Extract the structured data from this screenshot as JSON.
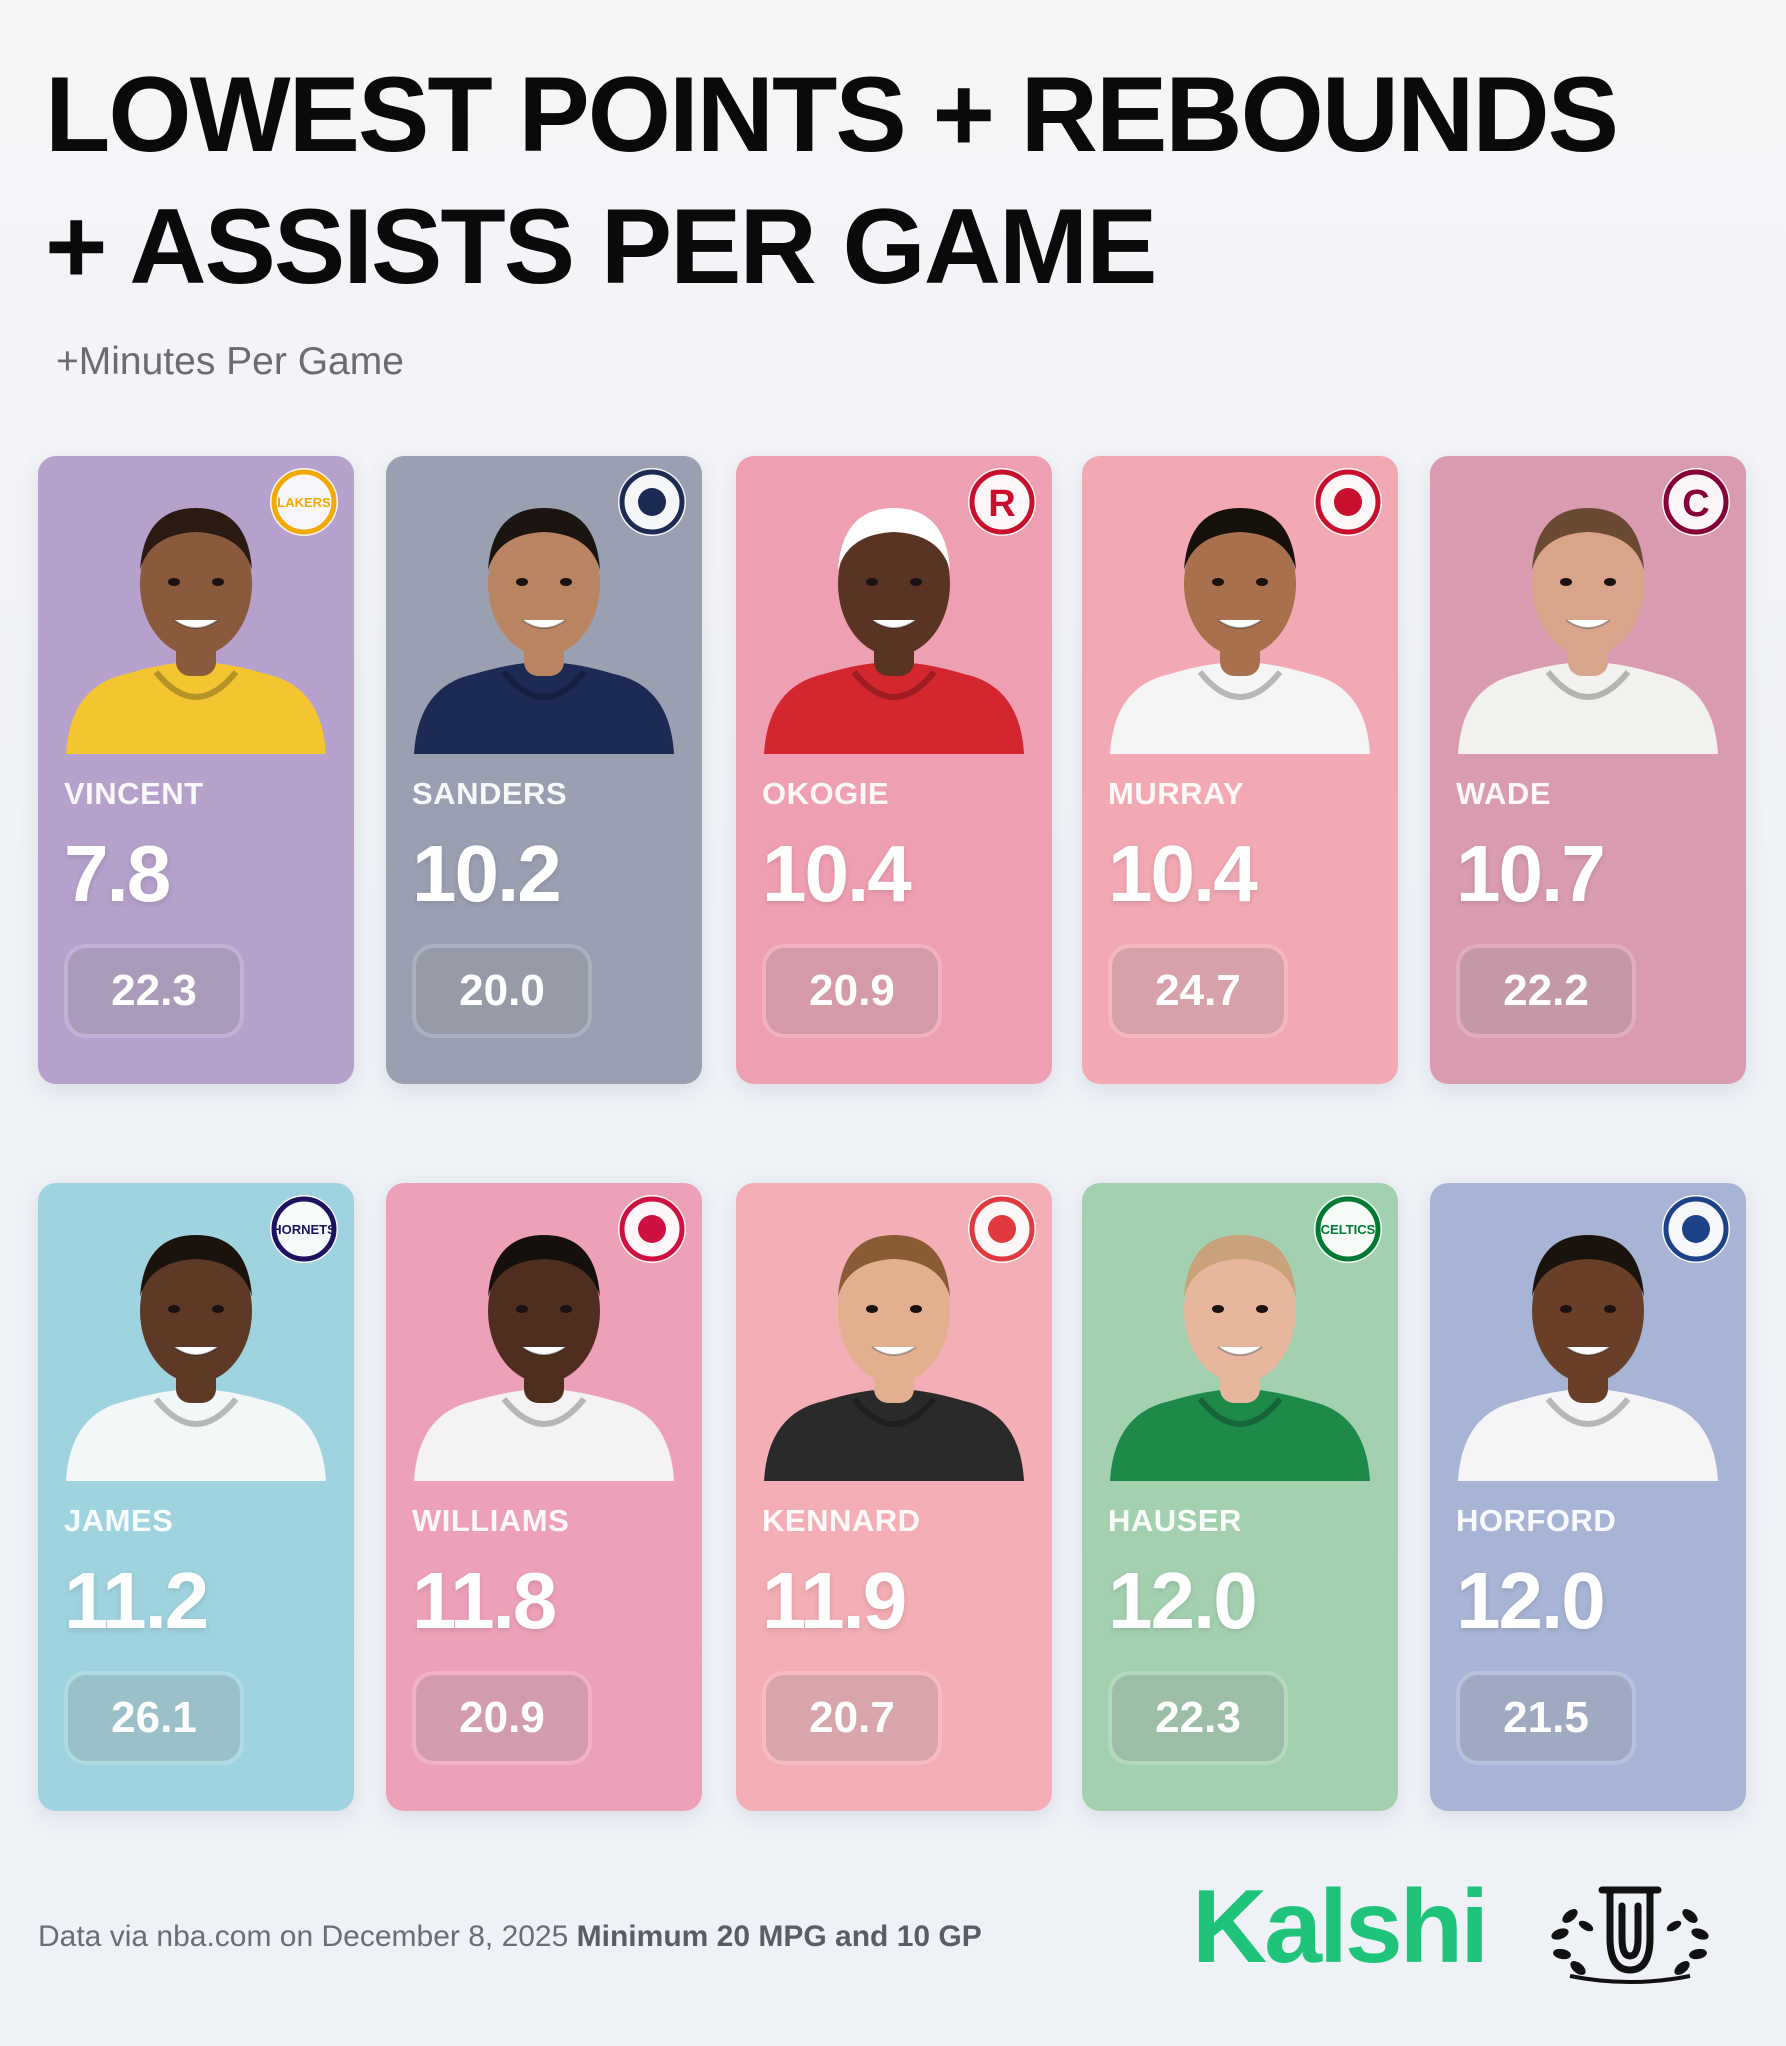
{
  "header": {
    "title_line1": "LOWEST POINTS + REBOUNDS",
    "title_line2": "+ ASSISTS PER GAME",
    "subtitle": "+Minutes Per Game"
  },
  "players": [
    {
      "name": "VINCENT",
      "pra": "7.8",
      "mpg": "22.3",
      "team_logo": "lakers-logo",
      "card_color": "#b6a0cc",
      "jersey_color": "#f2c531",
      "skin": "#8a5a3c",
      "hair": "#2a1a12",
      "logo_text": "LAKERS",
      "logo_color": "#f2a900"
    },
    {
      "name": "SANDERS",
      "pra": "10.2",
      "mpg": "20.0",
      "team_logo": "clippers-logo",
      "card_color": "#9aa0b2",
      "jersey_color": "#1d2a54",
      "skin": "#b98462",
      "hair": "#1b1410",
      "logo_text": "",
      "logo_color": "#1d2a54"
    },
    {
      "name": "OKOGIE",
      "pra": "10.4",
      "mpg": "20.9",
      "team_logo": "rockets-logo",
      "card_color": "#ef9fb2",
      "jersey_color": "#d3262e",
      "skin": "#5a3422",
      "hair": "#ffffff",
      "logo_text": "R",
      "logo_color": "#c8102e"
    },
    {
      "name": "MURRAY",
      "pra": "10.4",
      "mpg": "24.7",
      "team_logo": "trail-blazers-logo",
      "card_color": "#f2a9b3",
      "jersey_color": "#f5f5f5",
      "skin": "#a8704d",
      "hair": "#17110c",
      "logo_text": "",
      "logo_color": "#c8102e"
    },
    {
      "name": "WADE",
      "pra": "10.7",
      "mpg": "22.2",
      "team_logo": "cavaliers-logo",
      "card_color": "#d99bb0",
      "jersey_color": "#f3f1ee",
      "skin": "#d9a58a",
      "hair": "#6a4a32",
      "logo_text": "C",
      "logo_color": "#860038"
    },
    {
      "name": "JAMES",
      "pra": "11.2",
      "mpg": "26.1",
      "team_logo": "hornets-logo",
      "card_color": "#9fd3e0",
      "jersey_color": "#f2f7f8",
      "skin": "#5e3a26",
      "hair": "#1a120c",
      "logo_text": "HORNETS",
      "logo_color": "#1d1160"
    },
    {
      "name": "WILLIAMS",
      "pra": "11.8",
      "mpg": "20.9",
      "team_logo": "bulls-logo",
      "card_color": "#eda1b8",
      "jersey_color": "#f4f2f2",
      "skin": "#4f2e1f",
      "hair": "#15100c",
      "logo_text": "",
      "logo_color": "#ce1141"
    },
    {
      "name": "KENNARD",
      "pra": "11.9",
      "mpg": "20.7",
      "team_logo": "hawks-logo",
      "card_color": "#f4aeb5",
      "jersey_color": "#2a2a2a",
      "skin": "#e2b08f",
      "hair": "#8a5c36",
      "logo_text": "",
      "logo_color": "#e03a3e"
    },
    {
      "name": "HAUSER",
      "pra": "12.0",
      "mpg": "22.3",
      "team_logo": "celtics-logo",
      "card_color": "#a3d1b0",
      "jersey_color": "#1e8a4a",
      "skin": "#e6b79c",
      "hair": "#c9a17a",
      "logo_text": "CELTICS",
      "logo_color": "#007a33"
    },
    {
      "name": "HORFORD",
      "pra": "12.0",
      "mpg": "21.5",
      "team_logo": "warriors-logo",
      "card_color": "#a8b4d6",
      "jersey_color": "#f5f5f7",
      "skin": "#6a3f28",
      "hair": "#1a120c",
      "logo_text": "",
      "logo_color": "#1d428a"
    }
  ],
  "footer": {
    "source_text": "Data via nba.com on December 8, 2025",
    "qualifier_text": "Minimum 20 MPG and 10 GP",
    "brand": "Kalshi",
    "badge_icon": "laurel-u-badge-icon"
  }
}
